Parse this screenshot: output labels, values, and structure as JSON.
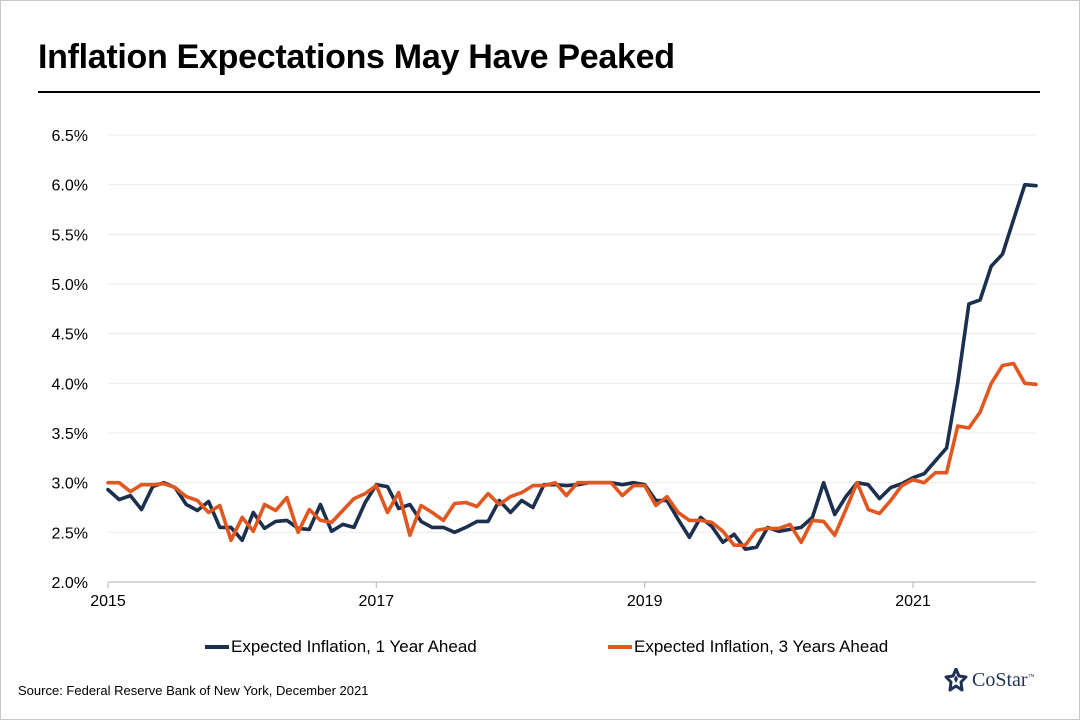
{
  "title": "Inflation Expectations May Have Peaked",
  "source": "Source: Federal Reserve Bank of New York, December 2021",
  "logo": {
    "text": "CoStar",
    "tm": "™",
    "icon": "costar-star-icon",
    "color": "#1f3256"
  },
  "chart_data": {
    "type": "line",
    "title": "Inflation Expectations May Have Peaked",
    "xlabel": "",
    "ylabel": "",
    "x_ticks": [
      "2015",
      "2017",
      "2019",
      "2021"
    ],
    "y_ticks": [
      "2.0%",
      "2.5%",
      "3.0%",
      "3.5%",
      "4.0%",
      "4.5%",
      "5.0%",
      "5.5%",
      "6.0%",
      "6.5%"
    ],
    "ylim": [
      2.0,
      6.5
    ],
    "x_range": [
      "2015-01",
      "2021-11"
    ],
    "grid": "horizontal",
    "legend_position": "bottom",
    "series": [
      {
        "name": "Expected Inflation, 1 Year Ahead",
        "color": "#1b2f4e",
        "values": [
          2.93,
          2.83,
          2.87,
          2.73,
          2.96,
          3.0,
          2.95,
          2.78,
          2.72,
          2.81,
          2.55,
          2.55,
          2.42,
          2.7,
          2.54,
          2.61,
          2.62,
          2.54,
          2.53,
          2.78,
          2.51,
          2.58,
          2.55,
          2.8,
          2.98,
          2.96,
          2.74,
          2.78,
          2.61,
          2.55,
          2.55,
          2.5,
          2.55,
          2.61,
          2.61,
          2.82,
          2.7,
          2.82,
          2.75,
          2.98,
          2.98,
          2.97,
          2.98,
          3.0,
          3.0,
          3.0,
          2.98,
          3.0,
          2.98,
          2.82,
          2.82,
          2.63,
          2.45,
          2.65,
          2.56,
          2.4,
          2.48,
          2.33,
          2.35,
          2.55,
          2.51,
          2.53,
          2.55,
          2.65,
          3.0,
          2.68,
          2.86,
          3.0,
          2.98,
          2.84,
          2.95,
          2.99,
          3.05,
          3.09,
          3.22,
          3.35,
          4.0,
          4.8,
          4.84,
          5.18,
          5.3,
          5.65,
          6.0,
          5.99
        ]
      },
      {
        "name": "Expected Inflation, 3 Years Ahead",
        "color": "#e2561f",
        "values": [
          3.0,
          3.0,
          2.91,
          2.98,
          2.98,
          2.99,
          2.95,
          2.86,
          2.82,
          2.7,
          2.77,
          2.42,
          2.65,
          2.51,
          2.78,
          2.72,
          2.85,
          2.5,
          2.73,
          2.62,
          2.6,
          2.72,
          2.84,
          2.89,
          2.97,
          2.7,
          2.9,
          2.47,
          2.77,
          2.7,
          2.62,
          2.79,
          2.8,
          2.76,
          2.89,
          2.78,
          2.86,
          2.9,
          2.97,
          2.97,
          3.0,
          2.87,
          3.0,
          3.0,
          3.0,
          3.0,
          2.87,
          2.97,
          2.97,
          2.77,
          2.86,
          2.7,
          2.62,
          2.62,
          2.6,
          2.51,
          2.37,
          2.37,
          2.52,
          2.54,
          2.54,
          2.58,
          2.4,
          2.62,
          2.61,
          2.47,
          2.73,
          3.0,
          2.73,
          2.69,
          2.82,
          2.97,
          3.03,
          3.0,
          3.1,
          3.1,
          3.57,
          3.55,
          3.71,
          4.0,
          4.18,
          4.2,
          4.0,
          3.99
        ]
      }
    ]
  }
}
